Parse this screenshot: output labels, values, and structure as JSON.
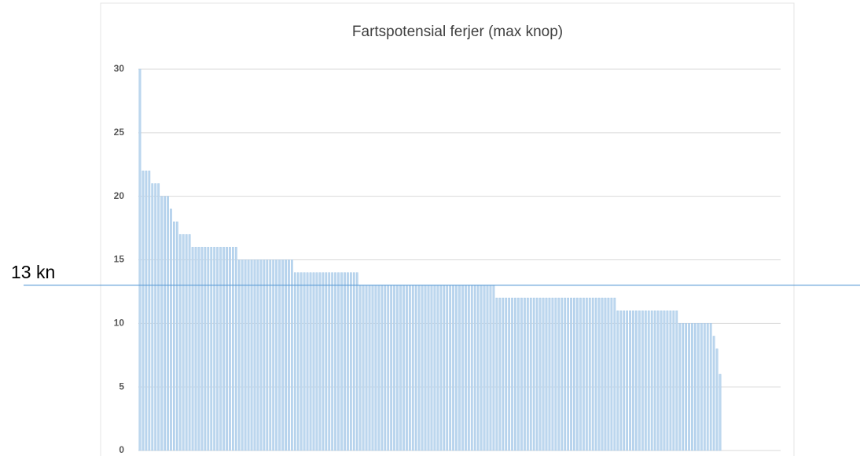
{
  "chart_data": {
    "type": "bar",
    "title": "Fartspotensial ferjer (max knop)",
    "values": [
      30,
      22,
      22,
      22,
      21,
      21,
      21,
      20,
      20,
      20,
      19,
      18,
      18,
      17,
      17,
      17,
      17,
      16,
      16,
      16,
      16,
      16,
      16,
      16,
      16,
      16,
      16,
      16,
      16,
      16,
      16,
      16,
      15,
      15,
      15,
      15,
      15,
      15,
      15,
      15,
      15,
      15,
      15,
      15,
      15,
      15,
      15,
      15,
      15,
      15,
      14,
      14,
      14,
      14,
      14,
      14,
      14,
      14,
      14,
      14,
      14,
      14,
      14,
      14,
      14,
      14,
      14,
      14,
      14,
      14,
      14,
      13,
      13,
      13,
      13,
      13,
      13,
      13,
      13,
      13,
      13,
      13,
      13,
      13,
      13,
      13,
      13,
      13,
      13,
      13,
      13,
      13,
      13,
      13,
      13,
      13,
      13,
      13,
      13,
      13,
      13,
      13,
      13,
      13,
      13,
      13,
      13,
      13,
      13,
      13,
      13,
      13,
      13,
      13,
      13,
      12,
      12,
      12,
      12,
      12,
      12,
      12,
      12,
      12,
      12,
      12,
      12,
      12,
      12,
      12,
      12,
      12,
      12,
      12,
      12,
      12,
      12,
      12,
      12,
      12,
      12,
      12,
      12,
      12,
      12,
      12,
      12,
      12,
      12,
      12,
      12,
      12,
      12,
      12,
      11,
      11,
      11,
      11,
      11,
      11,
      11,
      11,
      11,
      11,
      11,
      11,
      11,
      11,
      11,
      11,
      11,
      11,
      11,
      11,
      10,
      10,
      10,
      10,
      10,
      10,
      10,
      10,
      10,
      10,
      10,
      9,
      8,
      6
    ],
    "color": "#bdd7ee",
    "ylim": [
      0,
      30
    ],
    "yticks": [
      0,
      5,
      10,
      15,
      20,
      25,
      30
    ],
    "grid": true,
    "annotation": {
      "text": "13 kn",
      "value": 13,
      "color": "#5b9bd5"
    }
  }
}
